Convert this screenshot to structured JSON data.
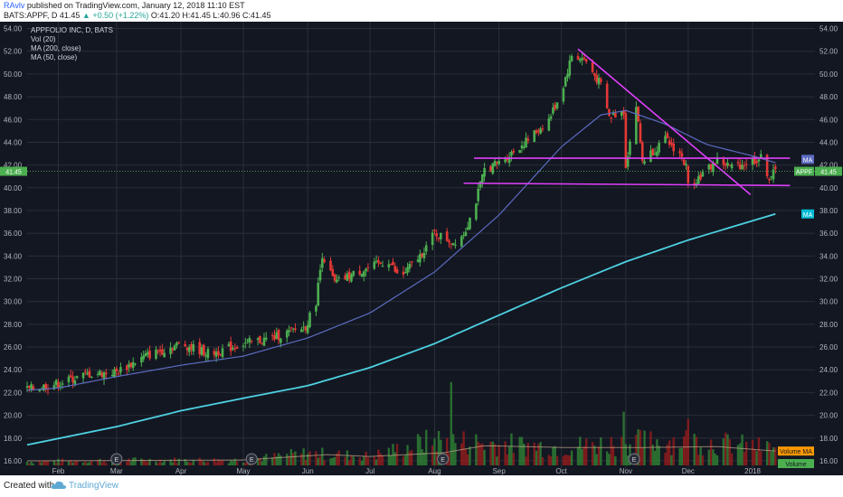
{
  "header": {
    "author": "RAvlv",
    "published": "published on TradingView.com, January 12, 2018 11:10 EST",
    "symbol": "BATS:APPF, D",
    "last": "41.45",
    "change": "▲ +0.50 (+1.22%)",
    "ohlc": "O:41.20 H:41.45 L:40.96 C:41.45"
  },
  "footer": {
    "created": "Created with",
    "brand": "TradingView"
  },
  "legend": [
    "APPFOLIO INC, D, BATS",
    "Vol (20)",
    "MA (200, close)",
    "MA (50, close)"
  ],
  "colors": {
    "background": "#131722",
    "up": "#26a69a",
    "down": "#ef5350",
    "candle_up": "#4caf50",
    "candle_down": "#e53935",
    "ma200": "#4dd0e1",
    "ma50": "#5c6bc0",
    "trendline": "#e040fb",
    "price_line": "#4caf50",
    "grid": "#2a2e39"
  },
  "chart_data": {
    "type": "candlestick",
    "instrument": "APPF",
    "ylim": [
      15.2,
      54.6
    ],
    "ytick_labels": [
      "16.00",
      "18.00",
      "20.00",
      "22.00",
      "24.00",
      "26.00",
      "28.00",
      "30.00",
      "32.00",
      "34.00",
      "36.00",
      "38.00",
      "40.00",
      "42.00",
      "44.00",
      "46.00",
      "48.00",
      "50.00",
      "52.00",
      "54.00"
    ],
    "x_range": [
      "2018-01-22",
      "2018-01-12"
    ],
    "x_date_range": [
      "2017-01-17",
      "2018-01-31"
    ],
    "xtick_labels": [
      {
        "date": "2017-02-01",
        "label": "Feb"
      },
      {
        "date": "2017-03-01",
        "label": "Mar"
      },
      {
        "date": "2017-04-01",
        "label": "Apr"
      },
      {
        "date": "2017-05-01",
        "label": "May"
      },
      {
        "date": "2017-06-01",
        "label": "Jun"
      },
      {
        "date": "2017-07-01",
        "label": "Jul"
      },
      {
        "date": "2017-08-01",
        "label": "Aug"
      },
      {
        "date": "2017-09-01",
        "label": "Sep"
      },
      {
        "date": "2017-10-01",
        "label": "Oct"
      },
      {
        "date": "2017-11-01",
        "label": "Nov"
      },
      {
        "date": "2017-12-01",
        "label": "Dec"
      },
      {
        "date": "2018-01-01",
        "label": "2018"
      }
    ],
    "price_anchors": [
      [
        "2017-01-18",
        22.3
      ],
      [
        "2017-02-01",
        22.8
      ],
      [
        "2017-02-15",
        23.6
      ],
      [
        "2017-03-01",
        23.8
      ],
      [
        "2017-03-15",
        25.2
      ],
      [
        "2017-04-01",
        26.3
      ],
      [
        "2017-04-15",
        25.4
      ],
      [
        "2017-05-01",
        26.3
      ],
      [
        "2017-05-15",
        26.8
      ],
      [
        "2017-05-31",
        27.8
      ],
      [
        "2017-06-05",
        30.0
      ],
      [
        "2017-06-08",
        34.2
      ],
      [
        "2017-06-14",
        31.6
      ],
      [
        "2017-06-25",
        32.6
      ],
      [
        "2017-07-10",
        33.6
      ],
      [
        "2017-07-15",
        32.0
      ],
      [
        "2017-07-25",
        34.0
      ],
      [
        "2017-08-01",
        36.0
      ],
      [
        "2017-08-10",
        35.2
      ],
      [
        "2017-08-15",
        36.0
      ],
      [
        "2017-08-20",
        38.2
      ],
      [
        "2017-08-25",
        41.6
      ],
      [
        "2017-09-01",
        42.2
      ],
      [
        "2017-09-15",
        44.2
      ],
      [
        "2017-09-25",
        46.0
      ],
      [
        "2017-10-01",
        48.4
      ],
      [
        "2017-10-06",
        51.6
      ],
      [
        "2017-10-12",
        51.3
      ],
      [
        "2017-10-20",
        49.0
      ],
      [
        "2017-10-24",
        46.2
      ],
      [
        "2017-10-31",
        46.8
      ],
      [
        "2017-11-01",
        42.0
      ],
      [
        "2017-11-06",
        47.2
      ],
      [
        "2017-11-09",
        42.4
      ],
      [
        "2017-11-20",
        44.2
      ],
      [
        "2017-11-27",
        43.0
      ],
      [
        "2017-11-30",
        41.8
      ],
      [
        "2017-12-01",
        40.2
      ],
      [
        "2017-12-08",
        41.2
      ],
      [
        "2017-12-15",
        42.4
      ],
      [
        "2017-12-22",
        41.8
      ],
      [
        "2017-12-29",
        42.2
      ],
      [
        "2018-01-05",
        42.6
      ],
      [
        "2018-01-09",
        40.9
      ],
      [
        "2018-01-12",
        41.45
      ]
    ],
    "ma200": [
      [
        "2017-01-17",
        17.4
      ],
      [
        "2017-03-01",
        19.0
      ],
      [
        "2017-04-01",
        20.4
      ],
      [
        "2017-05-01",
        21.5
      ],
      [
        "2017-06-01",
        22.6
      ],
      [
        "2017-07-01",
        24.2
      ],
      [
        "2017-08-01",
        26.3
      ],
      [
        "2017-09-01",
        28.8
      ],
      [
        "2017-10-01",
        31.2
      ],
      [
        "2017-11-01",
        33.5
      ],
      [
        "2017-12-01",
        35.4
      ],
      [
        "2018-01-12",
        37.7
      ]
    ],
    "ma50": [
      [
        "2017-01-17",
        22.2
      ],
      [
        "2017-02-01",
        22.4
      ],
      [
        "2017-03-01",
        23.4
      ],
      [
        "2017-04-01",
        24.4
      ],
      [
        "2017-05-01",
        25.2
      ],
      [
        "2017-06-01",
        26.8
      ],
      [
        "2017-07-01",
        29.0
      ],
      [
        "2017-08-01",
        32.6
      ],
      [
        "2017-09-01",
        37.6
      ],
      [
        "2017-10-01",
        43.6
      ],
      [
        "2017-10-20",
        46.4
      ],
      [
        "2017-11-01",
        46.8
      ],
      [
        "2017-11-20",
        45.6
      ],
      [
        "2017-12-10",
        43.8
      ],
      [
        "2018-01-01",
        42.8
      ],
      [
        "2018-01-12",
        42.2
      ]
    ],
    "trendlines": [
      {
        "from": [
          "2017-10-09",
          52.2
        ],
        "to": [
          "2017-12-31",
          39.4
        ]
      },
      {
        "from": [
          "2017-08-20",
          42.6
        ],
        "to": [
          "2018-01-19",
          42.6
        ]
      },
      {
        "from": [
          "2017-08-15",
          40.4
        ],
        "to": [
          "2018-01-19",
          40.2
        ]
      }
    ],
    "volume": {
      "label": "Vol (20)",
      "bar_height_fraction_anchors": [
        [
          "2017-01-17",
          0.05
        ],
        [
          "2017-03-01",
          0.07
        ],
        [
          "2017-05-01",
          0.07
        ],
        [
          "2017-06-01",
          0.16
        ],
        [
          "2017-07-01",
          0.12
        ],
        [
          "2017-08-01",
          0.33
        ],
        [
          "2017-09-01",
          0.28
        ],
        [
          "2017-10-01",
          0.24
        ],
        [
          "2017-11-01",
          0.3
        ],
        [
          "2017-12-01",
          0.33
        ],
        [
          "2018-01-12",
          0.22
        ]
      ],
      "volume_ma_fraction_anchors": [
        [
          "2017-01-17",
          0.05
        ],
        [
          "2017-05-01",
          0.06
        ],
        [
          "2017-06-10",
          0.12
        ],
        [
          "2017-07-01",
          0.1
        ],
        [
          "2017-08-05",
          0.14
        ],
        [
          "2017-08-25",
          0.22
        ],
        [
          "2017-10-01",
          0.2
        ],
        [
          "2017-11-10",
          0.2
        ],
        [
          "2017-12-15",
          0.21
        ],
        [
          "2018-01-12",
          0.16
        ]
      ]
    },
    "earnings_markers": [
      "2017-03-01",
      "2017-05-05",
      "2017-08-05",
      "2017-11-05"
    ],
    "earnings_label": "E",
    "price_labels": [
      {
        "name": "last-price",
        "label": "41.45",
        "value": 41.45,
        "color": "#4caf50"
      },
      {
        "name": "appf-tag",
        "label": "APPF",
        "value": 41.45,
        "color": "#4caf50"
      },
      {
        "name": "ma50-tag",
        "label": "MA",
        "value": 42.5,
        "color": "#5c6bc0"
      },
      {
        "name": "ma200-tag",
        "label": "MA",
        "value": 37.7,
        "color": "#00bcd4"
      }
    ],
    "last_price": 41.45,
    "volume_labels": [
      {
        "name": "volume-ma-tag",
        "label": "Volume MA",
        "level": 0.16,
        "color": "#ff9800"
      },
      {
        "name": "volume-tag",
        "label": "Volume",
        "level": 0.02,
        "color": "#4caf50"
      }
    ]
  }
}
